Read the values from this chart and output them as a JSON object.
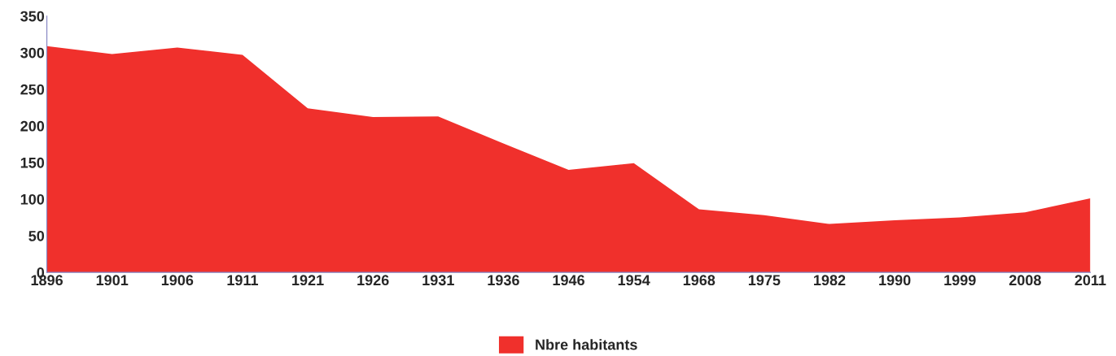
{
  "chart_data": {
    "type": "area",
    "categories": [
      "1896",
      "1901",
      "1906",
      "1911",
      "1921",
      "1926",
      "1931",
      "1936",
      "1946",
      "1954",
      "1968",
      "1975",
      "1982",
      "1990",
      "1999",
      "2008",
      "2011"
    ],
    "series": [
      {
        "name": "Nbre habitants",
        "color": "#f0302c",
        "values": [
          309,
          298,
          307,
          297,
          224,
          212,
          213,
          176,
          140,
          149,
          86,
          78,
          66,
          71,
          75,
          82,
          101
        ]
      }
    ],
    "ylim": [
      0,
      350
    ],
    "yticks": [
      0,
      50,
      100,
      150,
      200,
      250,
      300,
      350
    ],
    "grid": false,
    "legend": "bottom"
  }
}
